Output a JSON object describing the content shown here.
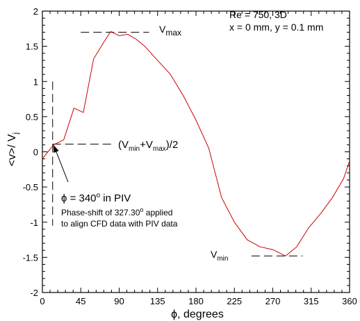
{
  "chart_data": {
    "type": "line",
    "xlabel": "ϕ, degrees",
    "ylabel": "<v>/ V",
    "ylabel_sub": "j",
    "xlim": [
      0,
      360
    ],
    "ylim": [
      -2,
      2
    ],
    "xticks": [
      0,
      45,
      90,
      135,
      180,
      225,
      270,
      315,
      360
    ],
    "yticks": [
      -2,
      -1.5,
      -1,
      -0.5,
      0,
      0.5,
      1,
      1.5,
      2
    ],
    "ytick_labels": [
      "-2",
      "-1.5",
      "-1",
      "-0.5",
      "0",
      "0.5",
      "1",
      "1.5",
      "2"
    ],
    "grid": false,
    "series": [
      {
        "color": "#cc0000",
        "x": [
          0,
          13,
          25,
          37,
          48,
          60,
          72,
          80,
          90,
          100,
          110,
          120,
          135,
          150,
          165,
          180,
          195,
          210,
          225,
          240,
          255,
          270,
          285,
          298,
          312,
          326,
          340,
          353,
          360
        ],
        "y": [
          -0.1,
          0.1,
          0.17,
          0.62,
          0.56,
          1.32,
          1.56,
          1.71,
          1.65,
          1.67,
          1.6,
          1.5,
          1.3,
          1.1,
          0.8,
          0.45,
          0.05,
          -0.65,
          -1.0,
          -1.25,
          -1.35,
          -1.39,
          -1.48,
          -1.35,
          -1.08,
          -0.88,
          -0.65,
          -0.38,
          -0.13
        ]
      }
    ],
    "info_box": {
      "line1": "Re = 750, 3D",
      "line2": "x = 0 mm, y = 0.1 mm"
    },
    "vmax": {
      "label": "V",
      "label_sub": "max",
      "y": 1.7,
      "x_from": 45,
      "x_to": 125
    },
    "vmin": {
      "label": "V",
      "label_sub": "min",
      "y": -1.48,
      "x_from": 245,
      "x_to": 305
    },
    "vmid": {
      "label_open": "(V",
      "sub_min": "min",
      "label_mid": "+V",
      "sub_max": "max",
      "label_close": ")/2",
      "y": 0.11,
      "x_from": 12,
      "x_to": 85
    },
    "vertical_dash": {
      "x": 12,
      "y_from": -1.05,
      "y_to": 1.0
    },
    "annotation": {
      "phi_symbol": "ϕ",
      "phi_text": " = 340",
      "phi_sup": "o",
      "phi_tail": " in PIV",
      "shift_line1_a": "Phase-shift of 327.30",
      "shift_line1_sup": "o",
      "shift_line1_b": " applied",
      "shift_line2": "to align CFD data with PIV data",
      "arrow_to": [
        12,
        0.11
      ]
    }
  }
}
